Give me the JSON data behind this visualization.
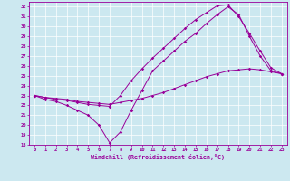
{
  "xlabel": "Windchill (Refroidissement éolien,°C)",
  "bg_color": "#cce8f0",
  "line_color": "#990099",
  "xlim": [
    -0.5,
    23.5
  ],
  "ylim": [
    18,
    32.5
  ],
  "xticks": [
    0,
    1,
    2,
    3,
    4,
    5,
    6,
    7,
    8,
    9,
    10,
    11,
    12,
    13,
    14,
    15,
    16,
    17,
    18,
    19,
    20,
    21,
    22,
    23
  ],
  "yticks": [
    18,
    19,
    20,
    21,
    22,
    23,
    24,
    25,
    26,
    27,
    28,
    29,
    30,
    31,
    32
  ],
  "line1_x": [
    0,
    1,
    2,
    3,
    4,
    5,
    6,
    7,
    8,
    9,
    10,
    11,
    12,
    13,
    14,
    15,
    16,
    17,
    18,
    19,
    20,
    21,
    22,
    23
  ],
  "line1_y": [
    23.0,
    22.8,
    22.7,
    22.6,
    22.4,
    22.3,
    22.2,
    22.1,
    22.3,
    22.5,
    22.7,
    23.0,
    23.3,
    23.7,
    24.1,
    24.5,
    24.9,
    25.2,
    25.5,
    25.6,
    25.7,
    25.6,
    25.4,
    25.2
  ],
  "line2_x": [
    0,
    1,
    2,
    3,
    4,
    5,
    6,
    7,
    8,
    9,
    10,
    11,
    12,
    13,
    14,
    15,
    16,
    17,
    18,
    19,
    20,
    21,
    22,
    23
  ],
  "line2_y": [
    23.0,
    22.6,
    22.4,
    22.0,
    21.5,
    21.0,
    20.0,
    18.2,
    19.3,
    21.5,
    23.5,
    25.5,
    26.5,
    27.5,
    28.5,
    29.3,
    30.3,
    31.2,
    32.0,
    31.2,
    29.0,
    27.0,
    25.5,
    25.2
  ],
  "line3_x": [
    0,
    1,
    2,
    3,
    4,
    5,
    6,
    7,
    8,
    9,
    10,
    11,
    12,
    13,
    14,
    15,
    16,
    17,
    18,
    19,
    20,
    21,
    22,
    23
  ],
  "line3_y": [
    23.0,
    22.8,
    22.6,
    22.5,
    22.3,
    22.1,
    22.0,
    21.9,
    23.0,
    24.5,
    25.7,
    26.8,
    27.8,
    28.8,
    29.8,
    30.7,
    31.4,
    32.1,
    32.2,
    31.0,
    29.3,
    27.5,
    25.8,
    25.2
  ]
}
